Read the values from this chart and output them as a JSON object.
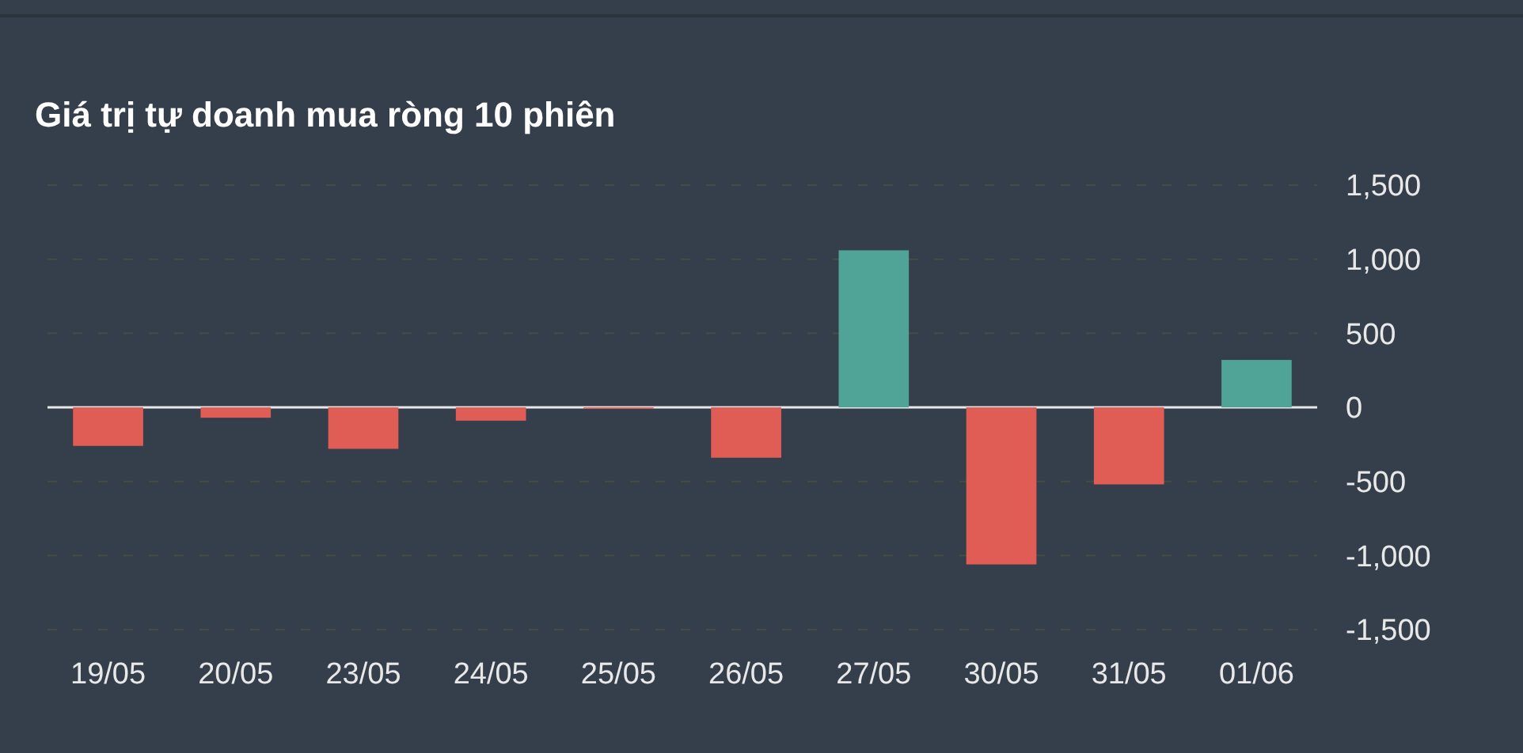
{
  "chart_data": {
    "type": "bar",
    "title": "Giá trị tự doanh mua ròng 10 phiên",
    "categories": [
      "19/05",
      "20/05",
      "23/05",
      "24/05",
      "25/05",
      "26/05",
      "27/05",
      "30/05",
      "31/05",
      "01/06"
    ],
    "values": [
      -260,
      -70,
      -280,
      -90,
      -10,
      -340,
      1060,
      -1060,
      -520,
      320
    ],
    "colors": [
      "#e05d56",
      "#e05d56",
      "#e05d56",
      "#e05d56",
      "#e05d56",
      "#e05d56",
      "#4fa397",
      "#e05d56",
      "#e05d56",
      "#4fa397"
    ],
    "ylim": [
      -1500,
      1500
    ],
    "yticks": [
      {
        "value": -1500,
        "label": "-1,500"
      },
      {
        "value": -1000,
        "label": "-1,000"
      },
      {
        "value": -500,
        "label": "-500"
      },
      0,
      500,
      {
        "value": 1000,
        "label": "1,000"
      },
      {
        "value": 1500,
        "label": "1,500"
      }
    ],
    "grid": "y"
  }
}
